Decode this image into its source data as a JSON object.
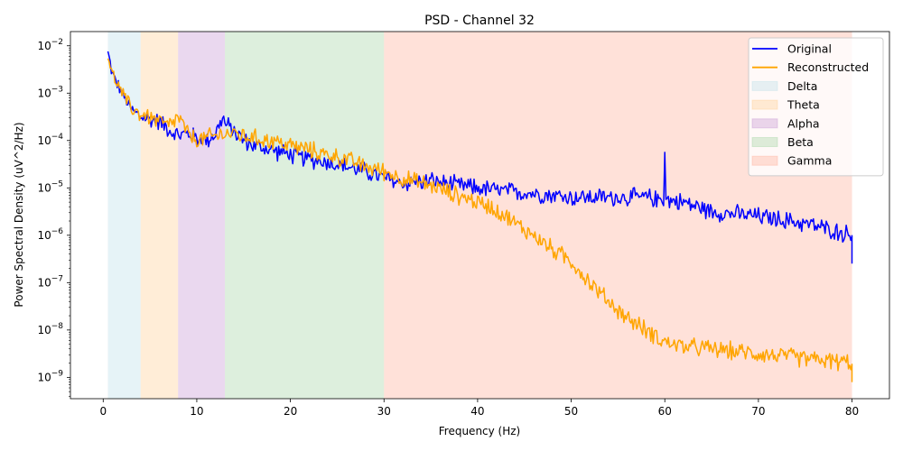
{
  "chart_data": {
    "type": "line",
    "title": "PSD - Channel 32",
    "xlabel": "Frequency (Hz)",
    "ylabel": "Power Spectral Density (uV^2/Hz)",
    "xlim": [
      -3.5,
      84
    ],
    "ylim_log10": [
      -9.45,
      -1.7
    ],
    "yscale": "log",
    "x_ticks": [
      0,
      10,
      20,
      30,
      40,
      50,
      60,
      70,
      80
    ],
    "x_tick_labels": [
      "0",
      "10",
      "20",
      "30",
      "40",
      "50",
      "60",
      "70",
      "80"
    ],
    "y_ticks_log10": [
      -9,
      -8,
      -7,
      -6,
      -5,
      -4,
      -3,
      -2
    ],
    "y_tick_labels": [
      {
        "base": "10",
        "exp": "−9"
      },
      {
        "base": "10",
        "exp": "−8"
      },
      {
        "base": "10",
        "exp": "−7"
      },
      {
        "base": "10",
        "exp": "−6"
      },
      {
        "base": "10",
        "exp": "−5"
      },
      {
        "base": "10",
        "exp": "−4"
      },
      {
        "base": "10",
        "exp": "−3"
      },
      {
        "base": "10",
        "exp": "−2"
      }
    ],
    "bands": [
      {
        "name": "Delta",
        "range": [
          0.5,
          4
        ],
        "color": "#add8e6"
      },
      {
        "name": "Theta",
        "range": [
          4,
          8
        ],
        "color": "#ffc57a"
      },
      {
        "name": "Alpha",
        "range": [
          8,
          13
        ],
        "color": "#b97fc9"
      },
      {
        "name": "Beta",
        "range": [
          13,
          30
        ],
        "color": "#8fc98f"
      },
      {
        "name": "Gamma",
        "range": [
          30,
          80
        ],
        "color": "#ff9a80"
      }
    ],
    "series": [
      {
        "name": "Original",
        "color": "#0000ff",
        "x": [
          0.5,
          1,
          2,
          3,
          4,
          5,
          6,
          7,
          8,
          9,
          10,
          11,
          12,
          12.8,
          13,
          14,
          15,
          16,
          18,
          20,
          22,
          24,
          26,
          28,
          30,
          32,
          35,
          38,
          40,
          42,
          45,
          48,
          50,
          55,
          58,
          60,
          62,
          65,
          70,
          75,
          78,
          80
        ],
        "log10_values": [
          -2.15,
          -2.6,
          -3.0,
          -3.35,
          -3.5,
          -3.55,
          -3.6,
          -3.75,
          -3.9,
          -3.85,
          -3.95,
          -4.0,
          -3.85,
          -3.5,
          -3.65,
          -3.8,
          -4.0,
          -4.1,
          -4.2,
          -4.3,
          -4.4,
          -4.45,
          -4.55,
          -4.65,
          -4.8,
          -4.9,
          -4.85,
          -4.95,
          -5.0,
          -5.05,
          -5.1,
          -5.15,
          -5.2,
          -5.2,
          -5.2,
          -5.25,
          -5.3,
          -5.5,
          -5.6,
          -5.75,
          -5.9,
          -6.0
        ],
        "peaks": [
          {
            "x": 60,
            "log10_value": -4.25
          }
        ],
        "end_dip": {
          "x": 80,
          "log10_value": -6.6
        }
      },
      {
        "name": "Reconstructed",
        "color": "#ffa500",
        "x": [
          0.5,
          1,
          2,
          3,
          4,
          5,
          6,
          7,
          8,
          9,
          10,
          11,
          12,
          13,
          14,
          15,
          16,
          18,
          20,
          22,
          24,
          26,
          28,
          30,
          32,
          35,
          37,
          40,
          42,
          44,
          46,
          48,
          50,
          52,
          54,
          56,
          58,
          60,
          62,
          65,
          70,
          75,
          80
        ],
        "log10_values": [
          -2.2,
          -2.6,
          -3.0,
          -3.3,
          -3.45,
          -3.5,
          -3.6,
          -3.7,
          -3.5,
          -3.85,
          -4.0,
          -3.95,
          -3.9,
          -3.85,
          -3.85,
          -3.9,
          -3.95,
          -4.0,
          -4.1,
          -4.2,
          -4.3,
          -4.4,
          -4.55,
          -4.65,
          -4.8,
          -4.95,
          -5.1,
          -5.3,
          -5.45,
          -5.75,
          -6.0,
          -6.3,
          -6.55,
          -7.0,
          -7.4,
          -7.75,
          -8.0,
          -8.25,
          -8.35,
          -8.4,
          -8.5,
          -8.6,
          -8.7
        ],
        "end_dip": {
          "x": 80,
          "log10_value": -9.1
        }
      }
    ],
    "legend_position": "top-right"
  }
}
